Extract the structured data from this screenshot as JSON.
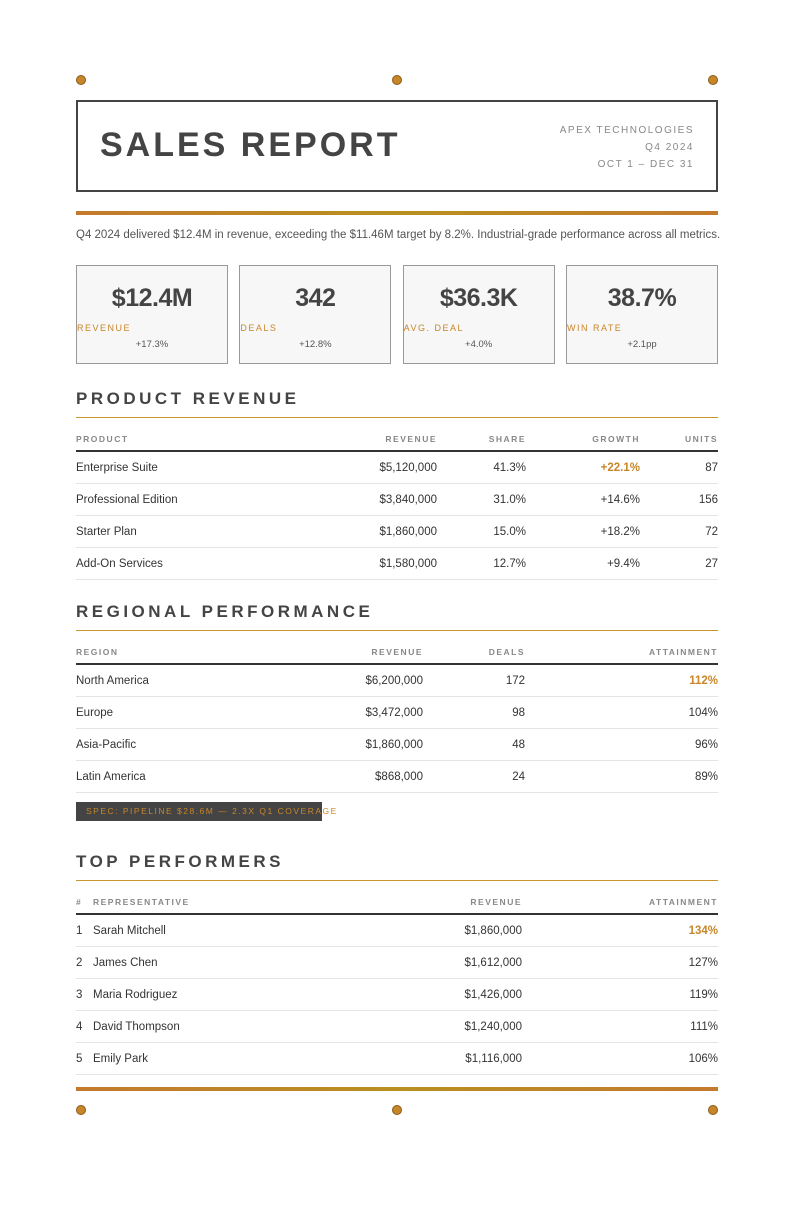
{
  "header": {
    "title": "SALES REPORT",
    "company": "APEX TECHNOLOGIES",
    "quarter": "Q4 2024",
    "period": "OCT 1 – DEC 31"
  },
  "summary": "Q4 2024 delivered $12.4M in revenue, exceeding the $11.46M target by 8.2%. Industrial-grade performance across all metrics.",
  "kpis": [
    {
      "value": "$12.4M",
      "label": "REVENUE",
      "change": "+17.3%"
    },
    {
      "value": "342",
      "label": "DEALS",
      "change": "+12.8%"
    },
    {
      "value": "$36.3K",
      "label": "AVG. DEAL",
      "change": "+4.0%"
    },
    {
      "value": "38.7%",
      "label": "WIN RATE",
      "change": "+2.1pp"
    }
  ],
  "product_revenue": {
    "title": "PRODUCT REVENUE",
    "columns": [
      "PRODUCT",
      "REVENUE",
      "SHARE",
      "GROWTH",
      "UNITS"
    ],
    "rows": [
      [
        "Enterprise Suite",
        "$5,120,000",
        "41.3%",
        "+22.1%",
        "87"
      ],
      [
        "Professional Edition",
        "$3,840,000",
        "31.0%",
        "+14.6%",
        "156"
      ],
      [
        "Starter Plan",
        "$1,860,000",
        "15.0%",
        "+18.2%",
        "72"
      ],
      [
        "Add-On Services",
        "$1,580,000",
        "12.7%",
        "+9.4%",
        "27"
      ]
    ]
  },
  "regional_performance": {
    "title": "REGIONAL PERFORMANCE",
    "columns": [
      "REGION",
      "REVENUE",
      "DEALS",
      "ATTAINMENT"
    ],
    "rows": [
      [
        "North America",
        "$6,200,000",
        "172",
        "112%"
      ],
      [
        "Europe",
        "$3,472,000",
        "98",
        "104%"
      ],
      [
        "Asia-Pacific",
        "$1,860,000",
        "48",
        "96%"
      ],
      [
        "Latin America",
        "$868,000",
        "24",
        "89%"
      ]
    ]
  },
  "spec_note": "SPEC: PIPELINE $28.6M — 2.3X Q1 COVERAGE",
  "top_performers": {
    "title": "TOP PERFORMERS",
    "columns": [
      "#",
      "REPRESENTATIVE",
      "REVENUE",
      "ATTAINMENT"
    ],
    "rows": [
      [
        "1",
        "Sarah Mitchell",
        "$1,860,000",
        "134%"
      ],
      [
        "2",
        "James Chen",
        "$1,612,000",
        "127%"
      ],
      [
        "3",
        "Maria Rodriguez",
        "$1,426,000",
        "119%"
      ],
      [
        "4",
        "David Thompson",
        "$1,240,000",
        "111%"
      ],
      [
        "5",
        "Emily Park",
        "$1,116,000",
        "106%"
      ]
    ]
  }
}
